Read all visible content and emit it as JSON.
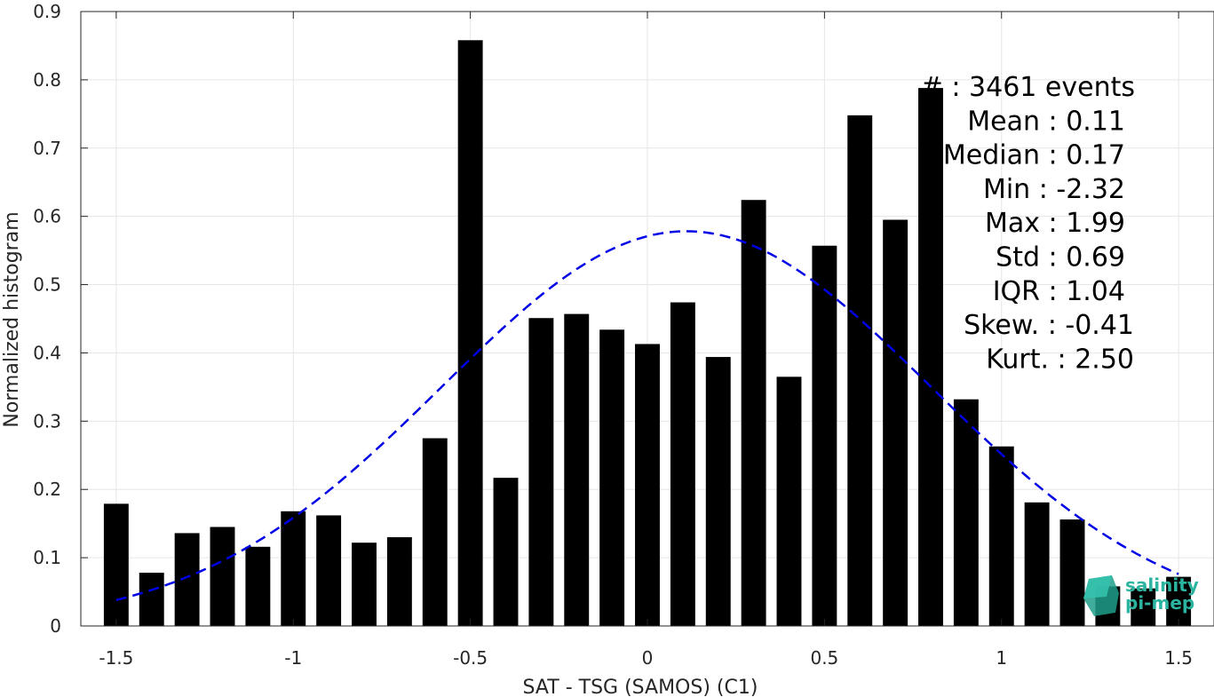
{
  "chart_data": {
    "type": "bar",
    "xlabel": "SAT - TSG (SAMOS) (C1)",
    "ylabel": "Normalized histogram",
    "xlim": [
      -1.6,
      1.6
    ],
    "ylim": [
      0,
      0.9
    ],
    "xticks": [
      -1.5,
      -1,
      -0.5,
      0,
      0.5,
      1,
      1.5
    ],
    "xtick_labels": [
      "-1.5",
      "-1",
      "-0.5",
      "0",
      "0.5",
      "1",
      "1.5"
    ],
    "yticks": [
      0,
      0.1,
      0.2,
      0.3,
      0.4,
      0.5,
      0.6,
      0.7,
      0.8,
      0.9
    ],
    "ytick_labels": [
      "0",
      "0.1",
      "0.2",
      "0.3",
      "0.4",
      "0.5",
      "0.6",
      "0.7",
      "0.8",
      "0.9"
    ],
    "grid": true,
    "bar_color": "#000000",
    "bins": [
      -1.5,
      -1.4,
      -1.3,
      -1.2,
      -1.1,
      -1.0,
      -0.9,
      -0.8,
      -0.7,
      -0.6,
      -0.5,
      -0.4,
      -0.3,
      -0.2,
      -0.1,
      0.0,
      0.1,
      0.2,
      0.3,
      0.4,
      0.5,
      0.6,
      0.7,
      0.8,
      0.9,
      1.0,
      1.1,
      1.2,
      1.3,
      1.4,
      1.5
    ],
    "values": [
      0.179,
      0.078,
      0.136,
      0.145,
      0.116,
      0.168,
      0.162,
      0.122,
      0.13,
      0.275,
      0.858,
      0.217,
      0.451,
      0.457,
      0.434,
      0.413,
      0.474,
      0.394,
      0.624,
      0.365,
      0.557,
      0.748,
      0.595,
      0.788,
      0.332,
      0.263,
      0.181,
      0.156,
      0.058,
      0.055,
      0.072
    ],
    "fit_curve": {
      "type": "normal",
      "mean": 0.11,
      "std": 0.69,
      "color": "#0000e6",
      "style": "dashed",
      "x_range": [
        -1.5,
        1.5
      ]
    },
    "stats": [
      {
        "label": "#",
        "value": "3461 events"
      },
      {
        "label": "Mean",
        "value": "0.11"
      },
      {
        "label": "Median",
        "value": "0.17"
      },
      {
        "label": "Min",
        "value": "-2.32"
      },
      {
        "label": "Max",
        "value": "1.99"
      },
      {
        "label": "Std",
        "value": "0.69"
      },
      {
        "label": "IQR",
        "value": "1.04"
      },
      {
        "label": "Skew.",
        "value": "-0.41"
      },
      {
        "label": "Kurt.",
        "value": "2.50"
      }
    ]
  },
  "logo": {
    "line1": "salinity",
    "line2": "pi-mep",
    "color": "#2bb5a0"
  }
}
